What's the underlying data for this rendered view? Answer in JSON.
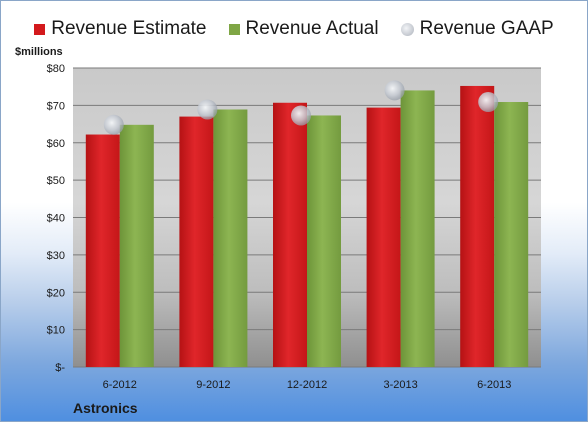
{
  "legend": {
    "estimate": "Revenue Estimate",
    "actual": "Revenue Actual",
    "gaap": "Revenue GAAP"
  },
  "unit_label": "$millions",
  "company": "Astronics",
  "colors": {
    "estimate": "#d3191c",
    "actual": "#7fa645",
    "gaap": "#c9cdd4"
  },
  "chart_data": {
    "type": "bar",
    "categories": [
      "6-2012",
      "9-2012",
      "12-2012",
      "3-2013",
      "6-2013"
    ],
    "series": [
      {
        "name": "Revenue Estimate",
        "values": [
          62.2,
          67.0,
          70.7,
          69.4,
          75.2
        ]
      },
      {
        "name": "Revenue Actual",
        "values": [
          64.8,
          68.9,
          67.3,
          74.0,
          70.9
        ]
      },
      {
        "name": "Revenue GAAP",
        "values": [
          64.8,
          68.9,
          67.3,
          74.0,
          70.9
        ],
        "style": "marker"
      }
    ],
    "ylim": [
      0,
      80
    ],
    "yticks": [
      0,
      10,
      20,
      30,
      40,
      50,
      60,
      70,
      80
    ],
    "ytick_labels": [
      "$-",
      "$10",
      "$20",
      "$30",
      "$40",
      "$50",
      "$60",
      "$70",
      "$80"
    ],
    "ylabel": "$millions",
    "grid": true,
    "legend_position": "top"
  }
}
